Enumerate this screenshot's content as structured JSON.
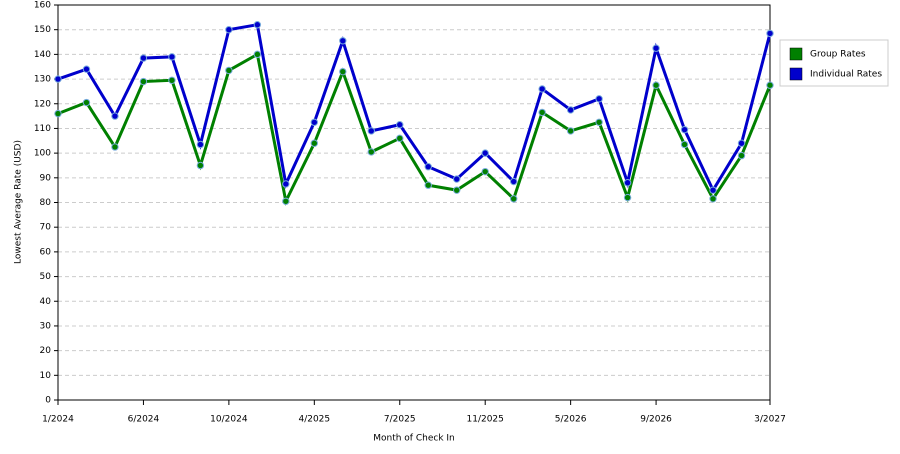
{
  "chart_data": {
    "type": "line",
    "x_label": "Month of Check In",
    "y_label": "Lowest Average Rate (USD)",
    "categories": [
      "1/2024",
      null,
      null,
      "6/2024",
      null,
      null,
      "10/2024",
      null,
      null,
      "4/2025",
      null,
      null,
      "7/2025",
      null,
      null,
      "11/2025",
      null,
      null,
      "5/2026",
      null,
      null,
      "9/2026",
      null,
      null,
      null,
      "3/2027"
    ],
    "series": [
      {
        "name": "Group Rates",
        "color": "#008000",
        "values": [
          116,
          120.5,
          102.5,
          129,
          129.5,
          95,
          133.5,
          140,
          80.5,
          104,
          133,
          100.5,
          106,
          87,
          85,
          92.5,
          81.5,
          116.5,
          109,
          112.5,
          82,
          127.5,
          103.5,
          81.5,
          99,
          127.5
        ]
      },
      {
        "name": "Individual Rates",
        "color": "#0000cc",
        "values": [
          130,
          134,
          115,
          138.5,
          139,
          103.5,
          150,
          152,
          87.5,
          112.5,
          145.5,
          109,
          111.5,
          94.5,
          89.5,
          100,
          88.5,
          126,
          117.5,
          122,
          88,
          142.5,
          109.5,
          85,
          104,
          148.5
        ]
      }
    ],
    "ylim": [
      0,
      160
    ],
    "yticks": [
      0,
      10,
      20,
      30,
      40,
      50,
      60,
      70,
      80,
      90,
      100,
      110,
      120,
      130,
      140,
      150,
      160
    ],
    "grid": true,
    "legend": "right"
  }
}
